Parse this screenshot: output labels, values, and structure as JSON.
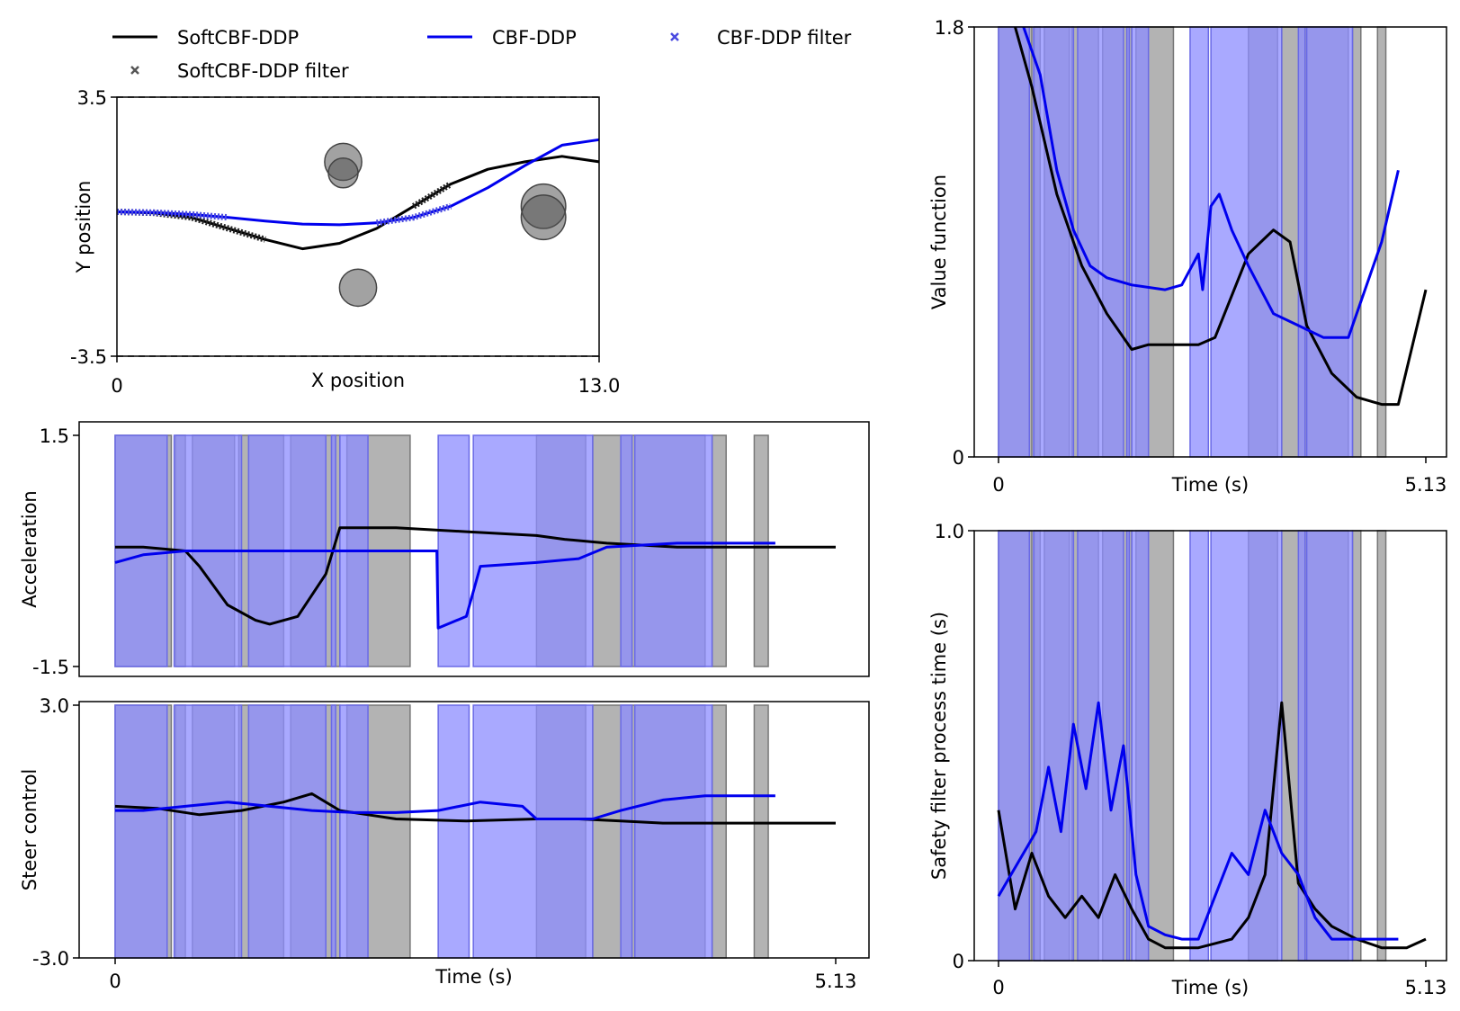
{
  "legend": {
    "entries": [
      {
        "label": "SoftCBF-DDP",
        "kind": "line",
        "color": "#000000"
      },
      {
        "label": "CBF-DDP",
        "kind": "line",
        "color": "#0000ee"
      },
      {
        "label": "CBF-DDP filter",
        "kind": "marker",
        "color": "#4a4ae0"
      },
      {
        "label": "SoftCBF-DDP filter",
        "kind": "marker",
        "color": "#555555"
      }
    ]
  },
  "colors": {
    "soft": "#000000",
    "cbf": "#0000ee",
    "soft_band": "#999999",
    "cbf_band": "#8c8cff",
    "overlap_band": "#5a5ab8"
  },
  "chart_data": [
    {
      "id": "trajectory",
      "type": "line",
      "xlabel": "X position",
      "ylabel": "Y position",
      "xlim": [
        0,
        13.0
      ],
      "ylim": [
        -3.5,
        3.5
      ],
      "xtick_labels": [
        "0",
        "13.0"
      ],
      "ytick_labels": [
        "3.5",
        "-3.5"
      ],
      "obstacles": [
        {
          "x": 6.1,
          "y": 1.8,
          "r": 0.5
        },
        {
          "x": 6.1,
          "y": 1.5,
          "r": 0.4
        },
        {
          "x": 11.5,
          "y": 0.6,
          "r": 0.6
        },
        {
          "x": 11.5,
          "y": 0.3,
          "r": 0.6
        },
        {
          "x": 6.5,
          "y": -1.6,
          "r": 0.5
        }
      ],
      "series": [
        {
          "name": "SoftCBF-DDP",
          "x": [
            0,
            1,
            2,
            3,
            4,
            5,
            6,
            7,
            8,
            9,
            10,
            11,
            12,
            13
          ],
          "y": [
            0.45,
            0.42,
            0.3,
            0.0,
            -0.3,
            -0.55,
            -0.4,
            0.0,
            0.6,
            1.2,
            1.6,
            1.8,
            1.95,
            1.8
          ]
        },
        {
          "name": "CBF-DDP",
          "x": [
            0,
            1,
            2,
            3,
            4,
            5,
            6,
            7,
            8,
            9,
            10,
            11,
            12,
            13
          ],
          "y": [
            0.45,
            0.43,
            0.38,
            0.3,
            0.2,
            0.12,
            0.1,
            0.15,
            0.3,
            0.6,
            1.1,
            1.7,
            2.25,
            2.4
          ]
        }
      ],
      "filter_segments": {
        "SoftCBF-DDP filter": [
          [
            0,
            4.3
          ],
          [
            7.6,
            9.9
          ]
        ],
        "CBF-DDP filter": [
          [
            0,
            3.3
          ],
          [
            6.6,
            9.9
          ]
        ]
      }
    },
    {
      "id": "acceleration",
      "type": "line",
      "xlabel": "Time (s)",
      "ylabel": "Acceleration",
      "xlim": [
        0,
        5.13
      ],
      "ylim": [
        -1.5,
        1.5
      ],
      "ytick_labels": [
        "1.5",
        "-1.5"
      ],
      "xtick_labels": [
        "0",
        "5.13"
      ],
      "series": [
        {
          "name": "SoftCBF-DDP",
          "x": [
            0,
            0.2,
            0.5,
            0.6,
            0.8,
            1.0,
            1.1,
            1.3,
            1.5,
            1.6,
            2.0,
            2.5,
            3.0,
            3.2,
            3.5,
            4.0,
            4.5,
            5.13
          ],
          "y": [
            0.05,
            0.05,
            0.0,
            -0.2,
            -0.7,
            -0.9,
            -0.95,
            -0.85,
            -0.3,
            0.3,
            0.3,
            0.25,
            0.2,
            0.15,
            0.1,
            0.05,
            0.05,
            0.05
          ]
        },
        {
          "name": "CBF-DDP",
          "x": [
            0,
            0.2,
            0.5,
            1.0,
            1.5,
            2.29,
            2.3,
            2.5,
            2.6,
            3.0,
            3.3,
            3.5,
            4.0,
            4.7
          ],
          "y": [
            -0.15,
            -0.05,
            0.0,
            0.0,
            0.0,
            0.0,
            -1.0,
            -0.85,
            -0.2,
            -0.15,
            -0.1,
            0.05,
            0.1,
            0.1
          ]
        }
      ]
    },
    {
      "id": "steer",
      "type": "line",
      "xlabel": "Time (s)",
      "ylabel": "Steer control",
      "xlim": [
        0,
        5.13
      ],
      "ylim": [
        -3.0,
        3.0
      ],
      "ytick_labels": [
        "3.0",
        "-3.0"
      ],
      "xtick_labels": [
        "0",
        "5.13"
      ],
      "series": [
        {
          "name": "SoftCBF-DDP",
          "x": [
            0,
            0.3,
            0.6,
            0.9,
            1.2,
            1.4,
            1.6,
            1.8,
            2.0,
            2.5,
            3.0,
            3.3,
            3.6,
            3.9,
            4.2,
            4.6,
            5.13
          ],
          "y": [
            0.6,
            0.55,
            0.4,
            0.5,
            0.7,
            0.9,
            0.5,
            0.4,
            0.3,
            0.25,
            0.3,
            0.3,
            0.25,
            0.2,
            0.2,
            0.2,
            0.2
          ]
        },
        {
          "name": "CBF-DDP",
          "x": [
            0,
            0.2,
            0.5,
            0.8,
            1.1,
            1.4,
            1.7,
            2.0,
            2.3,
            2.6,
            2.9,
            3.0,
            3.2,
            3.4,
            3.6,
            3.9,
            4.2,
            4.7
          ],
          "y": [
            0.5,
            0.5,
            0.6,
            0.7,
            0.6,
            0.5,
            0.45,
            0.45,
            0.5,
            0.7,
            0.6,
            0.3,
            0.3,
            0.3,
            0.5,
            0.75,
            0.85,
            0.85
          ]
        }
      ]
    },
    {
      "id": "value",
      "type": "line",
      "xlabel": "Time (s)",
      "ylabel": "Value function",
      "xlim": [
        0,
        5.13
      ],
      "ylim": [
        0,
        1.8
      ],
      "ytick_labels": [
        "1.8",
        "0"
      ],
      "xtick_labels": [
        "0",
        "5.13"
      ],
      "series": [
        {
          "name": "SoftCBF-DDP",
          "x": [
            0.2,
            0.4,
            0.7,
            1.0,
            1.3,
            1.6,
            1.8,
            2.0,
            2.4,
            2.6,
            3.0,
            3.3,
            3.5,
            3.7,
            4.0,
            4.3,
            4.6,
            4.8,
            5.13
          ],
          "y": [
            1.8,
            1.55,
            1.1,
            0.8,
            0.6,
            0.45,
            0.47,
            0.47,
            0.47,
            0.5,
            0.85,
            0.95,
            0.9,
            0.55,
            0.35,
            0.25,
            0.22,
            0.22,
            0.7
          ]
        },
        {
          "name": "CBF-DDP",
          "x": [
            0.3,
            0.5,
            0.7,
            0.9,
            1.1,
            1.3,
            1.6,
            2.0,
            2.2,
            2.4,
            2.45,
            2.55,
            2.65,
            2.8,
            3.0,
            3.3,
            3.6,
            3.9,
            4.2,
            4.6,
            4.8
          ],
          "y": [
            1.8,
            1.6,
            1.2,
            0.95,
            0.8,
            0.75,
            0.72,
            0.7,
            0.72,
            0.85,
            0.7,
            1.05,
            1.1,
            0.95,
            0.8,
            0.6,
            0.55,
            0.5,
            0.5,
            0.9,
            1.2
          ]
        }
      ]
    },
    {
      "id": "process_time",
      "type": "line",
      "xlabel": "Time (s)",
      "ylabel": "Safety filter process time (s)",
      "xlim": [
        0,
        5.13
      ],
      "ylim": [
        0,
        1.0
      ],
      "ytick_labels": [
        "1.0",
        "0"
      ],
      "xtick_labels": [
        "0",
        "5.13"
      ],
      "series": [
        {
          "name": "SoftCBF-DDP",
          "x": [
            0,
            0.2,
            0.4,
            0.6,
            0.8,
            1.0,
            1.2,
            1.4,
            1.6,
            1.8,
            2.0,
            2.4,
            2.6,
            2.8,
            3.0,
            3.2,
            3.4,
            3.6,
            3.8,
            4.0,
            4.3,
            4.6,
            4.9,
            5.13
          ],
          "y": [
            0.35,
            0.12,
            0.25,
            0.15,
            0.1,
            0.15,
            0.1,
            0.2,
            0.12,
            0.05,
            0.03,
            0.03,
            0.04,
            0.05,
            0.1,
            0.2,
            0.6,
            0.18,
            0.12,
            0.08,
            0.05,
            0.03,
            0.03,
            0.05
          ]
        },
        {
          "name": "CBF-DDP",
          "x": [
            0,
            0.15,
            0.3,
            0.45,
            0.6,
            0.75,
            0.9,
            1.05,
            1.2,
            1.35,
            1.5,
            1.65,
            1.8,
            2.0,
            2.2,
            2.4,
            2.6,
            2.8,
            3.0,
            3.2,
            3.4,
            3.6,
            3.8,
            4.0,
            4.2,
            4.5,
            4.8
          ],
          "y": [
            0.15,
            0.2,
            0.25,
            0.3,
            0.45,
            0.3,
            0.55,
            0.4,
            0.6,
            0.35,
            0.5,
            0.2,
            0.08,
            0.06,
            0.05,
            0.05,
            0.15,
            0.25,
            0.2,
            0.35,
            0.25,
            0.2,
            0.1,
            0.05,
            0.05,
            0.05,
            0.05
          ]
        }
      ]
    }
  ],
  "bands": {
    "cbf": [
      [
        0,
        0.37
      ],
      [
        0.42,
        0.9
      ],
      [
        0.95,
        1.5
      ],
      [
        1.54,
        1.57
      ],
      [
        1.6,
        1.8
      ],
      [
        2.3,
        2.52
      ],
      [
        2.55,
        3.4
      ],
      [
        3.6,
        3.68
      ],
      [
        3.7,
        4.25
      ]
    ],
    "soft": [
      [
        0,
        0.4
      ],
      [
        0.43,
        0.5
      ],
      [
        0.55,
        0.85
      ],
      [
        0.88,
        1.2
      ],
      [
        1.25,
        1.6
      ],
      [
        1.65,
        2.1
      ],
      [
        3.0,
        3.35
      ],
      [
        3.4,
        4.2
      ],
      [
        4.25,
        4.35
      ],
      [
        4.55,
        4.65
      ]
    ]
  }
}
